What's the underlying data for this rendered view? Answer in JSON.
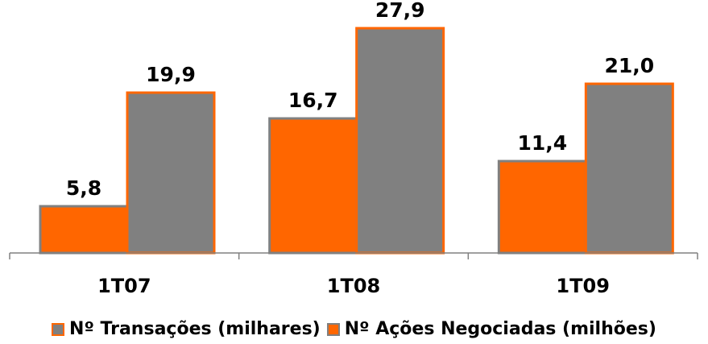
{
  "chart_data": {
    "type": "bar",
    "categories": [
      "1T07",
      "1T08",
      "1T09"
    ],
    "series": [
      {
        "name": "Nº Transações (milhares)",
        "values": [
          5.8,
          16.7,
          11.4
        ],
        "labels": [
          "5,8",
          "16,7",
          "11,4"
        ],
        "fill": "#FF6600",
        "stroke": "#808080",
        "legend_fill": "#808080",
        "legend_stroke": "#FF6600"
      },
      {
        "name": "Nº Ações Negociadas (milhões)",
        "values": [
          19.9,
          27.9,
          21.0
        ],
        "labels": [
          "19,9",
          "27,9",
          "21,0"
        ],
        "fill": "#808080",
        "stroke": "#FF6600",
        "legend_fill": "#FF6600",
        "legend_stroke": "#808080"
      }
    ],
    "ylim": [
      0,
      30
    ],
    "grid": false,
    "legend_position": "bottom",
    "title": "",
    "xlabel": "",
    "ylabel": ""
  }
}
